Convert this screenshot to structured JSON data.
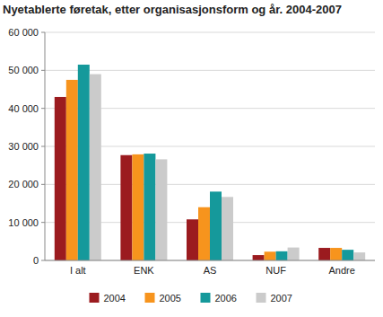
{
  "chart_data": {
    "type": "bar",
    "title": "Nyetablerte føretak, etter organisasjonsform og år. 2004-2007",
    "categories": [
      "I alt",
      "ENK",
      "AS",
      "NUF",
      "Andre"
    ],
    "series": [
      {
        "name": "2004",
        "color": "#9b1b1f",
        "values": [
          43000,
          27700,
          10800,
          1400,
          3300
        ]
      },
      {
        "name": "2005",
        "color": "#f7941d",
        "values": [
          47500,
          27900,
          14000,
          2300,
          3300
        ]
      },
      {
        "name": "2006",
        "color": "#15999b",
        "values": [
          51500,
          28100,
          18100,
          2400,
          2800
        ]
      },
      {
        "name": "2007",
        "color": "#cbcbcb",
        "values": [
          49000,
          26600,
          16700,
          3400,
          2100
        ]
      }
    ],
    "ylim": [
      0,
      60000
    ],
    "yticks": [
      0,
      {
        "value": 10000,
        "label": "10 000"
      },
      {
        "value": 20000,
        "label": "20 000"
      },
      {
        "value": 30000,
        "label": "30 000"
      },
      {
        "value": 40000,
        "label": "40 000"
      },
      {
        "value": 50000,
        "label": "50 000"
      },
      {
        "value": 60000,
        "label": "60 000"
      }
    ],
    "grid": true,
    "legend": "bottom"
  }
}
